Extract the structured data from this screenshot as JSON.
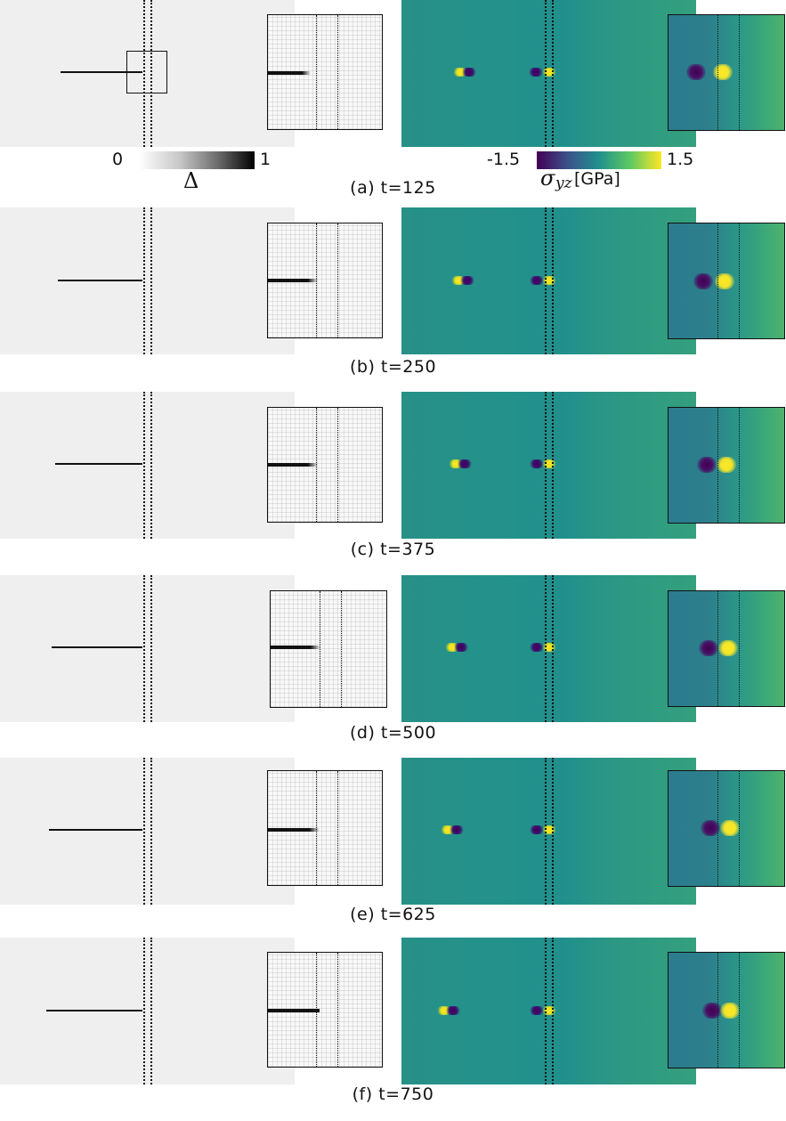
{
  "figure": {
    "panels": [
      {
        "id": "a",
        "caption": "(a) t=125"
      },
      {
        "id": "b",
        "caption": "(b) t=250"
      },
      {
        "id": "c",
        "caption": "(c) t=375"
      },
      {
        "id": "d",
        "caption": "(d) t=500"
      },
      {
        "id": "e",
        "caption": "(e) t=625"
      },
      {
        "id": "f",
        "caption": "(f) t=750"
      }
    ]
  },
  "colorbars": {
    "damage": {
      "min_label": "0",
      "max_label": "1",
      "symbol": "Δ"
    },
    "stress": {
      "min_label": "-1.5",
      "max_label": "1.5",
      "symbol": "σ",
      "subscript": "yz",
      "units": "[GPa]"
    }
  },
  "colors": {
    "damage_background": "#efefef",
    "viridis_low": "#440154",
    "viridis_mid": "#21908c",
    "viridis_high": "#fde725"
  }
}
